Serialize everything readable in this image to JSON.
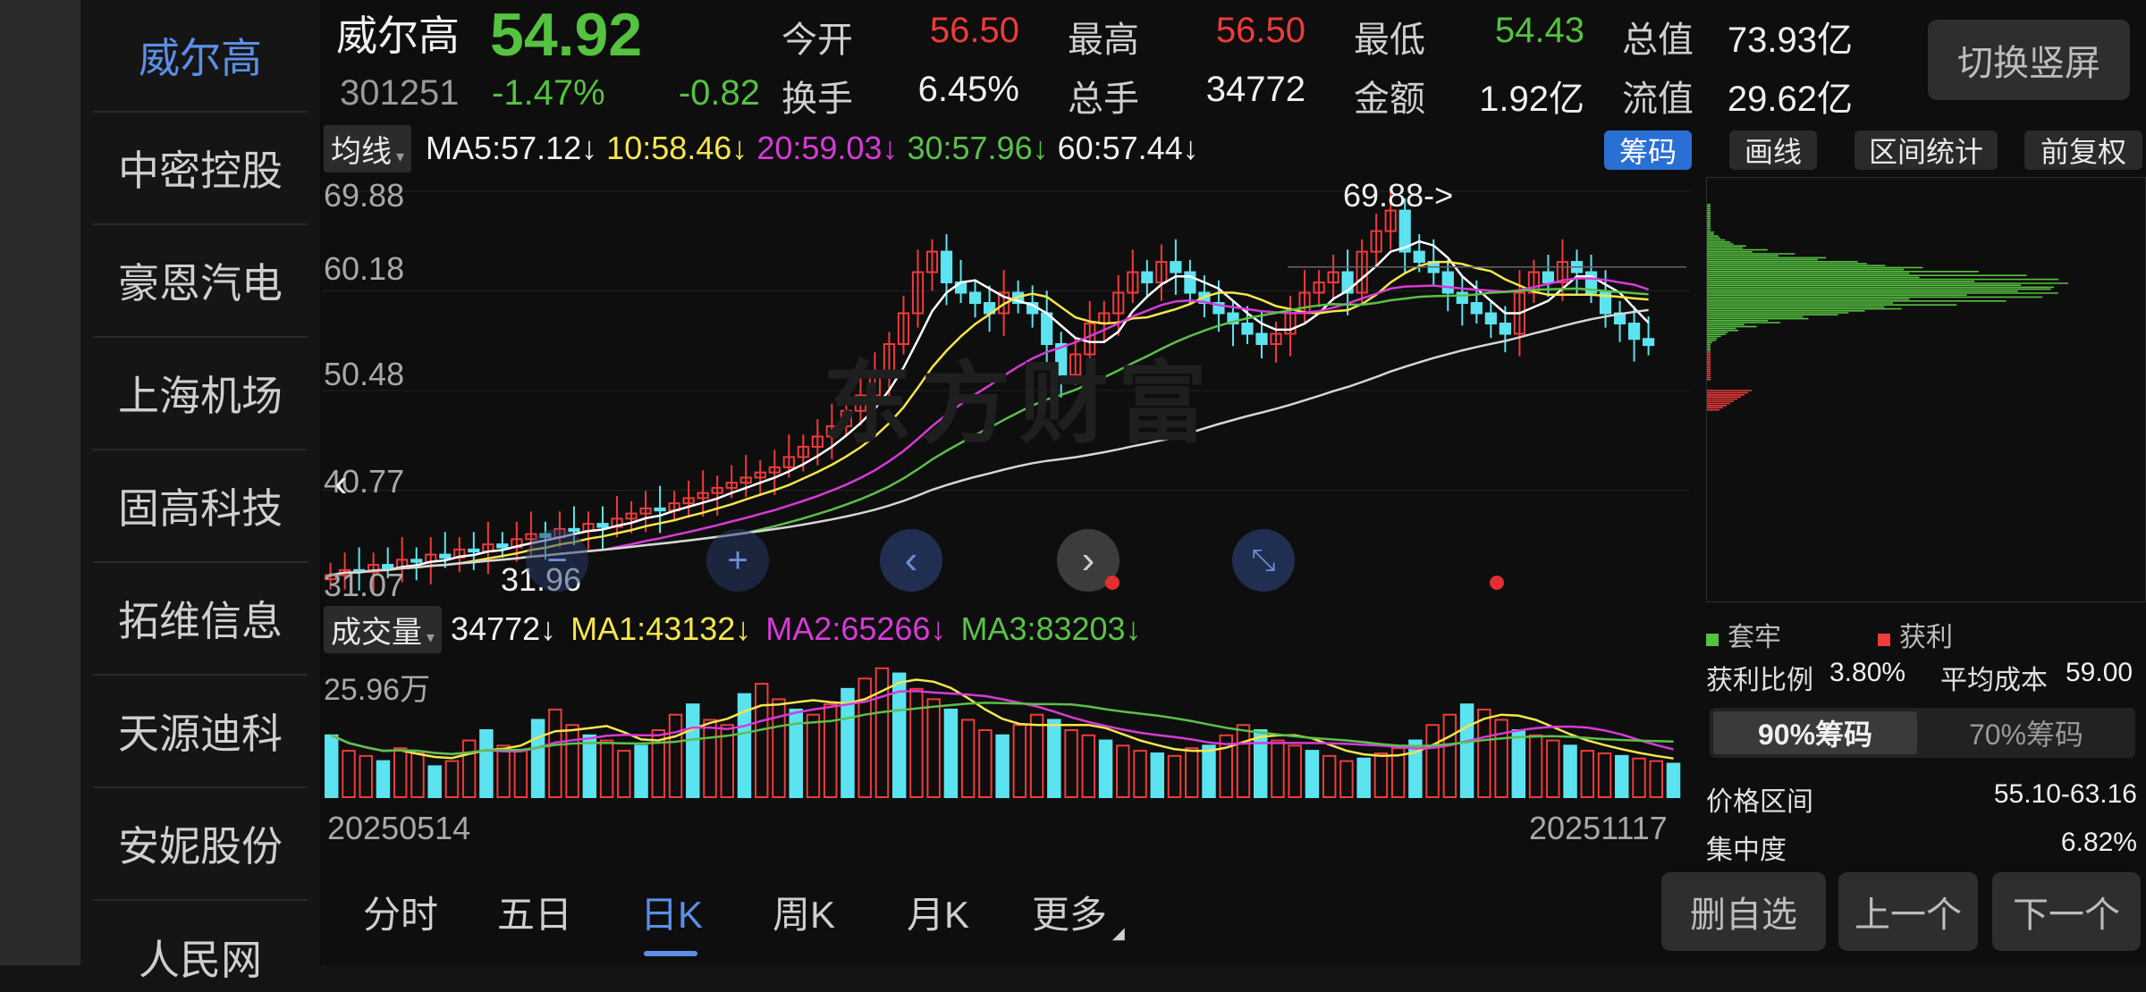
{
  "sidebar": {
    "items": [
      {
        "label": "威尔高",
        "active": true
      },
      {
        "label": "中密控股"
      },
      {
        "label": "豪恩汽电"
      },
      {
        "label": "上海机场"
      },
      {
        "label": "固高科技"
      },
      {
        "label": "拓维信息"
      },
      {
        "label": "天源迪科"
      },
      {
        "label": "安妮股份"
      },
      {
        "label": "人民网"
      }
    ]
  },
  "quote": {
    "name": "威尔高",
    "code": "301251",
    "price": "54.92",
    "pct": "-1.47%",
    "chg": "-0.82",
    "stats": [
      {
        "label": "今开",
        "value": "56.50",
        "color": "red"
      },
      {
        "label": "最高",
        "value": "56.50",
        "color": "red"
      },
      {
        "label": "最低",
        "value": "54.43",
        "color": "green"
      },
      {
        "label": "总值",
        "value": "73.93亿",
        "color": "white"
      },
      {
        "label": "换手",
        "value": "6.45%",
        "color": "white"
      },
      {
        "label": "总手",
        "value": "34772",
        "color": "white"
      },
      {
        "label": "金额",
        "value": "1.92亿",
        "color": "white"
      },
      {
        "label": "流值",
        "value": "29.62亿",
        "color": "white"
      }
    ],
    "switch_label": "切换竖屏"
  },
  "ma_bar": {
    "selector": "均线",
    "ma5": "MA5:57.12↓",
    "ma10": "10:58.46↓",
    "ma20": "20:59.03↓",
    "ma30": "30:57.96↓",
    "ma60": "60:57.44↓",
    "tools": [
      "筹码",
      "画线",
      "区间统计",
      "前复权"
    ]
  },
  "kline": {
    "y_labels": [
      "69.88",
      "60.18",
      "50.48",
      "40.77",
      "31.07"
    ],
    "high_marker": "69.88->",
    "low_marker": "31.96",
    "watermark": "东方财富"
  },
  "vol_bar": {
    "selector": "成交量",
    "vol": "34772↓",
    "ma1": "MA1:43132↓",
    "ma2": "MA2:65266↓",
    "ma3": "MA3:83203↓",
    "y_label": "25.96万",
    "date_start": "20250514",
    "date_end": "20251117"
  },
  "periods": [
    {
      "label": "分时"
    },
    {
      "label": "五日"
    },
    {
      "label": "日K",
      "active": true
    },
    {
      "label": "周K"
    },
    {
      "label": "月K"
    },
    {
      "label": "更多"
    }
  ],
  "chip": {
    "legend": [
      "套牢",
      "获利"
    ],
    "profit_label": "获利比例",
    "profit_value": "3.80%",
    "avg_label": "平均成本",
    "avg_value": "59.00",
    "tabs": [
      "90%筹码",
      "70%筹码"
    ],
    "range_label": "价格区间",
    "range_value": "55.10-63.16",
    "conc_label": "集中度",
    "conc_value": "6.82%"
  },
  "actions": [
    "删自选",
    "上一个",
    "下一个"
  ],
  "colors": {
    "up": "#ee3b3b",
    "down": "#5ce3f0",
    "ma5": "#ffffff",
    "ma10": "#f5e64c",
    "ma20": "#d83ad8",
    "ma30": "#5cc04a",
    "ma60": "#d6d6d6",
    "accent": "#5b8fe6"
  },
  "chart_data": [
    {
      "type": "candlestick",
      "title": "",
      "dates": [
        "20250514",
        "20251117"
      ],
      "ylim": [
        31.07,
        69.88
      ],
      "high": 69.88,
      "low": 31.96,
      "close_series": [
        32.5,
        33,
        32.8,
        33.5,
        33.2,
        34,
        33.8,
        34.5,
        34.2,
        35,
        34.8,
        35.5,
        35.2,
        36,
        36.5,
        36.2,
        37,
        36.8,
        37.5,
        37.2,
        38,
        38.5,
        39,
        38.8,
        39.5,
        40,
        40.5,
        41,
        41.5,
        42,
        42.5,
        43,
        44,
        45,
        46,
        47,
        48.5,
        50,
        52,
        55,
        58,
        62,
        64,
        61,
        60,
        59,
        58,
        60,
        59,
        58,
        55,
        52,
        54,
        57,
        58,
        60,
        62,
        61,
        63,
        62,
        60,
        59,
        58,
        57,
        56,
        55,
        56,
        58,
        60,
        61,
        62,
        60,
        64,
        66,
        68,
        64,
        63,
        62,
        60,
        59,
        58,
        57,
        56,
        60,
        62,
        61,
        63,
        62,
        60,
        58,
        57,
        55.5,
        54.9
      ],
      "ma_series": [
        {
          "name": "MA5",
          "last": "57.12"
        },
        {
          "name": "MA10",
          "last": "58.46"
        },
        {
          "name": "MA20",
          "last": "59.03"
        },
        {
          "name": "MA30",
          "last": "57.96"
        },
        {
          "name": "MA60",
          "last": "57.44"
        }
      ]
    },
    {
      "type": "bar",
      "title": "成交量",
      "ylim": [
        0,
        259600
      ],
      "values": [
        120,
        90,
        80,
        70,
        95,
        85,
        60,
        70,
        110,
        130,
        100,
        90,
        150,
        170,
        140,
        120,
        110,
        90,
        100,
        130,
        160,
        180,
        150,
        140,
        200,
        220,
        190,
        170,
        160,
        180,
        210,
        230,
        250,
        240,
        210,
        190,
        170,
        150,
        130,
        120,
        140,
        160,
        150,
        130,
        120,
        110,
        100,
        90,
        85,
        80,
        95,
        100,
        120,
        140,
        130,
        110,
        100,
        90,
        80,
        70,
        75,
        85,
        95,
        110,
        140,
        160,
        180,
        170,
        150,
        130,
        120,
        110,
        100,
        90,
        85,
        80,
        75,
        70,
        65
      ],
      "ma": [
        {
          "name": "MA1",
          "last": "43132"
        },
        {
          "name": "MA2",
          "last": "65266"
        },
        {
          "name": "MA3",
          "last": "83203"
        }
      ]
    },
    {
      "type": "bar",
      "title": "",
      "orientation": "horizontal",
      "series": [
        {
          "name": "套牢",
          "color": "#55c240"
        },
        {
          "name": "获利",
          "color": "#ee3b3b"
        }
      ],
      "profit_ratio": "3.80%",
      "avg_cost": "59.00",
      "range_90": "55.10-63.16",
      "concentration": "6.82%"
    }
  ]
}
